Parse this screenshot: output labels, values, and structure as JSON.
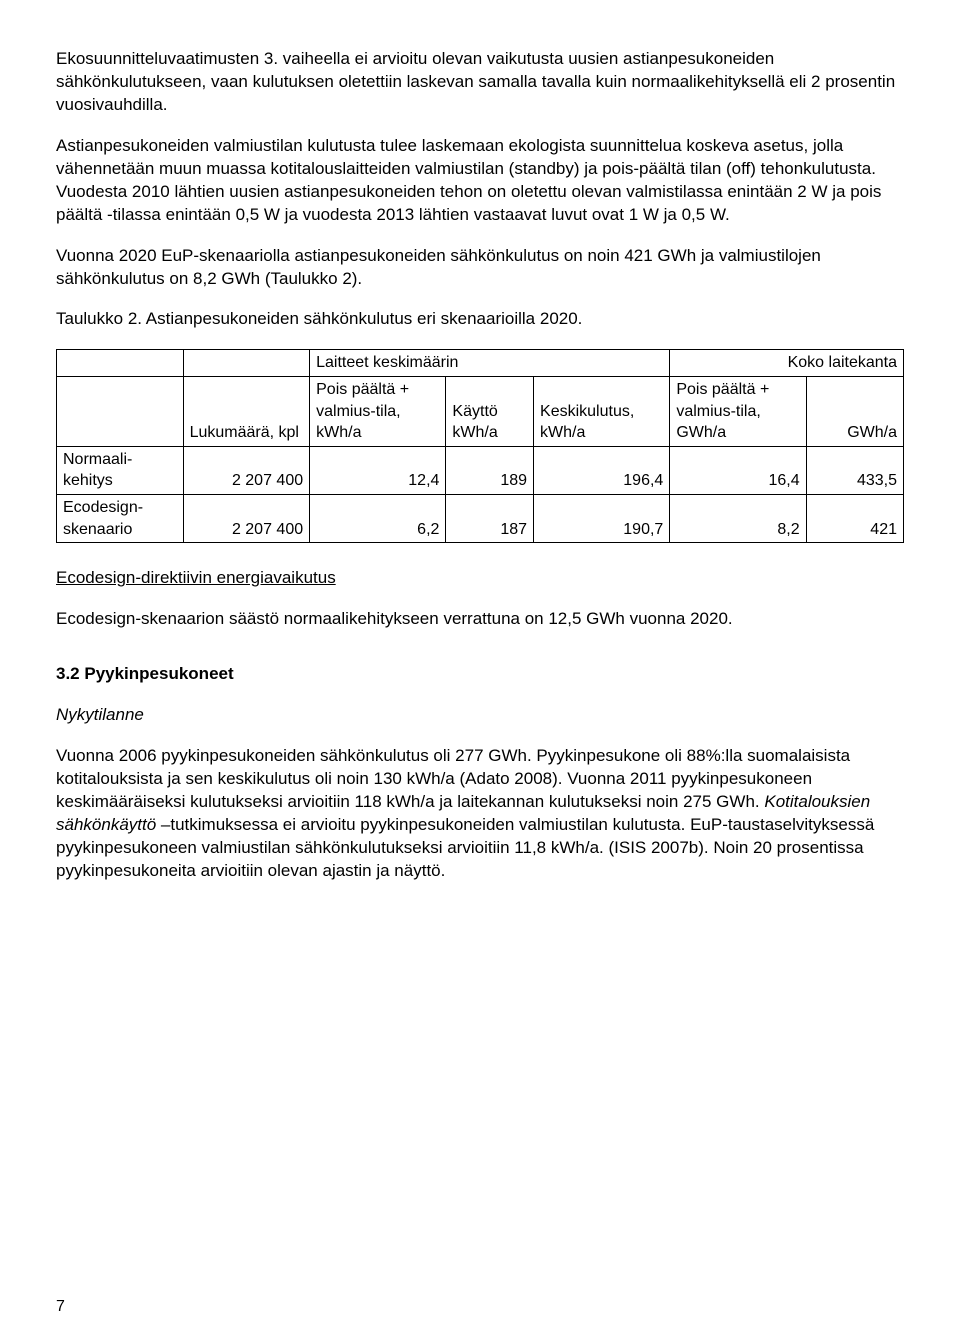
{
  "para1": "Ekosuunnitteluvaatimusten 3. vaiheella ei arvioitu olevan vaikutusta uusien astianpesukoneiden sähkönkulutukseen, vaan kulutuksen oletettiin laskevan samalla tavalla kuin normaalikehityksellä eli 2 prosentin vuosivauhdilla.",
  "para2": "Astianpesukoneiden valmiustilan kulutusta tulee laskemaan ekologista suunnittelua koskeva asetus, jolla vähennetään muun muassa kotitalouslaitteiden valmiustilan (standby) ja pois-päältä tilan (off) tehonkulutusta. Vuodesta 2010 lähtien uusien astianpesukoneiden tehon on oletettu olevan valmistilassa enintään 2 W ja pois päältä -tilassa enintään 0,5 W ja vuodesta 2013 lähtien vastaavat luvut ovat 1 W ja 0,5 W.",
  "para3": "Vuonna 2020 EuP-skenaariolla astianpesukoneiden sähkönkulutus on noin 421 GWh ja valmiustilojen sähkönkulutus on 8,2 GWh (Taulukko 2).",
  "tableCaption": "Taulukko 2. Astianpesukoneiden sähkönkulutus eri skenaarioilla 2020.",
  "table": {
    "headerGroupA": "Laitteet keskimäärin",
    "headerGroupB": "Koko laitekanta",
    "col1": "Lukumäärä, kpl",
    "col2": "Pois päältä + valmius-tila, kWh/a",
    "col3": "Käyttö kWh/a",
    "col4": "Keskikulutus, kWh/a",
    "col5": "Pois päältä + valmius-tila, GWh/a",
    "col6": "GWh/a",
    "row1Label": "Normaali-kehitys",
    "row1": {
      "luku": "2 207 400",
      "pois": "12,4",
      "kaytto": "189",
      "keski": "196,4",
      "pois2": "16,4",
      "gwh": "433,5"
    },
    "row2Label": "Ecodesign-skenaario",
    "row2": {
      "luku": "2 207 400",
      "pois": "6,2",
      "kaytto": "187",
      "keski": "190,7",
      "pois2": "8,2",
      "gwh": "421"
    }
  },
  "ecoHeading": "Ecodesign-direktiivin energiavaikutus",
  "ecoText": "Ecodesign-skenaarion säästö normaalikehitykseen verrattuna on 12,5 GWh vuonna 2020.",
  "section32": "3.2 Pyykinpesukoneet",
  "nykytilanne": "Nykytilanne",
  "para4a": "Vuonna 2006 pyykinpesukoneiden sähkönkulutus oli 277 GWh. Pyykinpesukone oli 88%:lla suomalaisista kotitalouksista ja sen keskikulutus oli noin 130 kWh/a (Adato 2008). Vuonna 2011 pyykinpesukoneen keskimääräiseksi kulutukseksi arvioitiin 118 kWh/a  ja laitekannan kulutukseksi noin 275 GWh. ",
  "para4b": "Kotitalouksien sähkönkäyttö",
  "para4c": " –tutkimuksessa ei arvioitu pyykinpesukoneiden valmiustilan kulutusta. EuP-taustaselvityksessä pyykinpesukoneen valmiustilan sähkönkulutukseksi arvioitiin 11,8 kWh/a.  (ISIS 2007b). Noin 20 prosentissa pyykinpesukoneita arvioitiin olevan ajastin ja näyttö.",
  "pageNumber": "7"
}
